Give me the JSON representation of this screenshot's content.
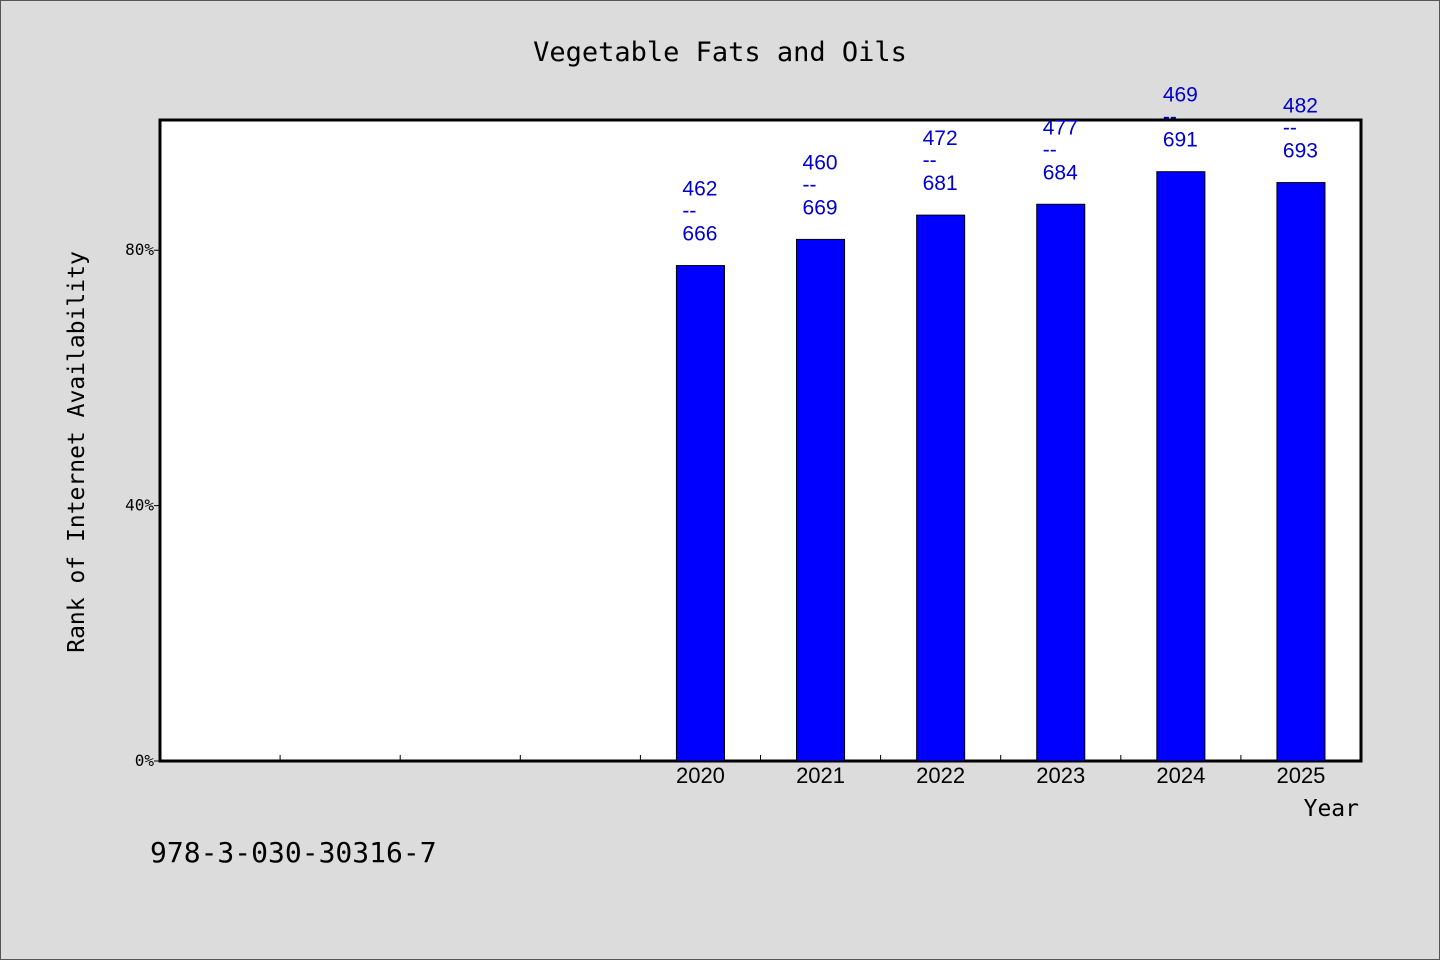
{
  "chart_data": {
    "type": "bar",
    "title": "Vegetable Fats and Oils",
    "xlabel": "Year",
    "ylabel": "Rank of Internet Availability",
    "categories": [
      "",
      "",
      "",
      "",
      "2020",
      "2021",
      "2022",
      "2023",
      "2024",
      "2025"
    ],
    "values": [
      null,
      null,
      null,
      null,
      77.6,
      81.7,
      85.5,
      87.2,
      92.3,
      90.6
    ],
    "labels": [
      {
        "top": "",
        "sep": "",
        "bottom": ""
      },
      {
        "top": "",
        "sep": "",
        "bottom": ""
      },
      {
        "top": "",
        "sep": "",
        "bottom": ""
      },
      {
        "top": "",
        "sep": "",
        "bottom": ""
      },
      {
        "top": "462",
        "sep": "--",
        "bottom": "666"
      },
      {
        "top": "460",
        "sep": "--",
        "bottom": "669"
      },
      {
        "top": "472",
        "sep": "--",
        "bottom": "681"
      },
      {
        "top": "477",
        "sep": "--",
        "bottom": "684"
      },
      {
        "top": "469",
        "sep": "--",
        "bottom": "691"
      },
      {
        "top": "482",
        "sep": "--",
        "bottom": "693"
      }
    ],
    "yticks": [
      {
        "value": 0,
        "label": "0%"
      },
      {
        "value": 40,
        "label": "40%"
      },
      {
        "value": 80,
        "label": "80%"
      }
    ],
    "ylim": [
      0,
      100.4
    ],
    "grid": false,
    "colors": {
      "bar": "#0000ff",
      "bar_outline": "#000000",
      "label": "#0000cc",
      "plot_background": "#ffffff",
      "page_background": "#dcdcdc"
    }
  },
  "footer": {
    "id_text": "978-3-030-30316-7"
  }
}
